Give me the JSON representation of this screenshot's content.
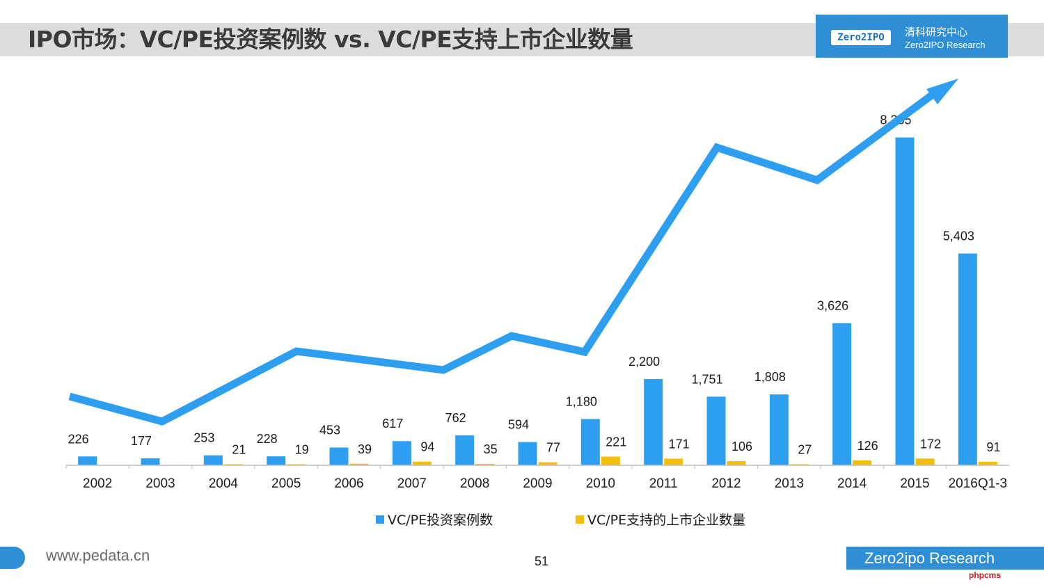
{
  "header": {
    "title": "IPO市场：VC/PE投资案例数 vs. VC/PE支持上市企业数量",
    "logo_badge": "Zero2IPO",
    "logo_cn": "清科研究中心",
    "logo_en": "Zero2IPO Research"
  },
  "footer": {
    "url": "www.pedata.cn",
    "page_number": "51",
    "brand": "Zero2ipo Research",
    "watermark": "phpcms"
  },
  "colors": {
    "investments": "#2e9ff0",
    "ipos": "#f5be0b",
    "trend_arrow": "#2e9ff0"
  },
  "chart_data": {
    "type": "bar",
    "categories": [
      "2002",
      "2003",
      "2004",
      "2005",
      "2006",
      "2007",
      "2008",
      "2009",
      "2010",
      "2011",
      "2012",
      "2013",
      "2014",
      "2015",
      "2016Q1-3"
    ],
    "series": [
      {
        "name": "VC/PE投资案例数",
        "values": [
          226,
          177,
          253,
          228,
          453,
          617,
          762,
          594,
          1180,
          2200,
          1751,
          1808,
          3626,
          8365,
          5403
        ],
        "labels": [
          "226",
          "177",
          "253",
          "228",
          "453",
          "617",
          "762",
          "594",
          "1,180",
          "2,200",
          "1,751",
          "1,808",
          "3,626",
          "8,365",
          "5,403"
        ]
      },
      {
        "name": "VC/PE支持的上市企业数量",
        "values": [
          null,
          null,
          21,
          19,
          39,
          94,
          35,
          77,
          221,
          171,
          106,
          27,
          126,
          172,
          91
        ],
        "labels": [
          "",
          "",
          "21",
          "19",
          "39",
          "94",
          "35",
          "77",
          "221",
          "171",
          "106",
          "27",
          "126",
          "172",
          "91"
        ]
      }
    ],
    "ylim": [
      0,
      8500
    ],
    "grid": false,
    "legend_position": "bottom",
    "annotations": [
      "trend arrow"
    ]
  }
}
